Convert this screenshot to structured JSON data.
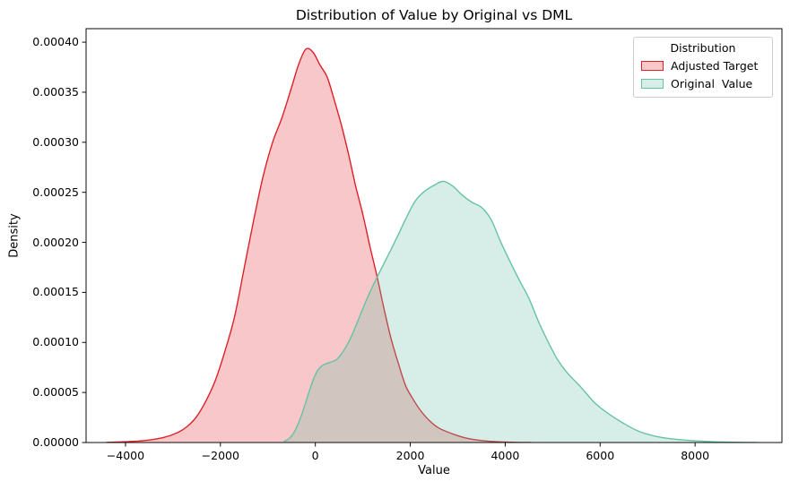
{
  "chart_data": {
    "type": "area",
    "subtype": "kde-density",
    "title": "Distribution of Value by Original vs DML",
    "xlabel": "Value",
    "ylabel": "Density",
    "xlim": [
      -4830,
      9830
    ],
    "ylim": [
      0,
      0.0004135
    ],
    "grid": false,
    "xtick_values": [
      -4000,
      -2000,
      0,
      2000,
      4000,
      6000,
      8000
    ],
    "xtick_labels": [
      "−4000",
      "−2000",
      "0",
      "2000",
      "4000",
      "6000",
      "8000"
    ],
    "ytick_values": [
      0.0,
      5e-05,
      0.0001,
      0.00015,
      0.0002,
      0.00025,
      0.0003,
      0.00035,
      0.0004
    ],
    "ytick_labels": [
      "0.00000",
      "0.00005",
      "0.00010",
      "0.00015",
      "0.00020",
      "0.00025",
      "0.00030",
      "0.00035",
      "0.00040"
    ],
    "legend": {
      "title": "Distribution",
      "position": "upper right",
      "entries": [
        {
          "label": "Adjusted Target"
        },
        {
          "label": "Original  Value"
        }
      ]
    },
    "frame_color": "#0a0a0a",
    "series": [
      {
        "name": "Adjusted Target",
        "line_color": "#e02029",
        "fill_color": "rgba(224,32,41,0.25)",
        "peak": {
          "x": -200,
          "y": 0.000393
        },
        "points": [
          [
            -4400,
            2e-07
          ],
          [
            -4000,
            8e-07
          ],
          [
            -3600,
            2e-06
          ],
          [
            -3200,
            5e-06
          ],
          [
            -2900,
            1e-05
          ],
          [
            -2700,
            1.6e-05
          ],
          [
            -2500,
            2.6e-05
          ],
          [
            -2300,
            4.2e-05
          ],
          [
            -2100,
            6.3e-05
          ],
          [
            -1900,
            9.2e-05
          ],
          [
            -1700,
            0.000126
          ],
          [
            -1500,
            0.000174
          ],
          [
            -1300,
            0.000222
          ],
          [
            -1100,
            0.000266
          ],
          [
            -900,
            0.0003
          ],
          [
            -700,
            0.000325
          ],
          [
            -500,
            0.000355
          ],
          [
            -350,
            0.000378
          ],
          [
            -200,
            0.000393
          ],
          [
            -50,
            0.00039
          ],
          [
            100,
            0.000377
          ],
          [
            250,
            0.000365
          ],
          [
            400,
            0.000342
          ],
          [
            550,
            0.000317
          ],
          [
            700,
            0.000288
          ],
          [
            850,
            0.000256
          ],
          [
            1000,
            0.000228
          ],
          [
            1150,
            0.000196
          ],
          [
            1300,
            0.000166
          ],
          [
            1450,
            0.000133
          ],
          [
            1600,
            0.000103
          ],
          [
            1750,
            7.9e-05
          ],
          [
            1900,
            5.7e-05
          ],
          [
            2050,
            4.4e-05
          ],
          [
            2200,
            3.3e-05
          ],
          [
            2400,
            2.2e-05
          ],
          [
            2600,
            1.45e-05
          ],
          [
            2900,
            8.5e-06
          ],
          [
            3200,
            4.2e-06
          ],
          [
            3600,
            1.5e-06
          ],
          [
            4000,
            5e-07
          ],
          [
            4300,
            1e-07
          ],
          [
            4550,
            0
          ]
        ]
      },
      {
        "name": "Original  Value",
        "line_color": "#66c2a5",
        "fill_color": "rgba(102,194,165,0.27)",
        "peak": {
          "x": 2700,
          "y": 0.000261
        },
        "points": [
          [
            -660,
            1e-06
          ],
          [
            -550,
            4e-06
          ],
          [
            -450,
            1e-05
          ],
          [
            -350,
            2e-05
          ],
          [
            -250,
            3.3e-05
          ],
          [
            -150,
            4.8e-05
          ],
          [
            -50,
            6.2e-05
          ],
          [
            50,
            7.2e-05
          ],
          [
            150,
            7.7e-05
          ],
          [
            300,
            8e-05
          ],
          [
            450,
            8.3e-05
          ],
          [
            600,
            9.2e-05
          ],
          [
            750,
            0.000105
          ],
          [
            900,
            0.000122
          ],
          [
            1100,
            0.000145
          ],
          [
            1300,
            0.000165
          ],
          [
            1500,
            0.000184
          ],
          [
            1700,
            0.000203
          ],
          [
            1900,
            0.000223
          ],
          [
            2100,
            0.000241
          ],
          [
            2300,
            0.000251
          ],
          [
            2500,
            0.000257
          ],
          [
            2700,
            0.000261
          ],
          [
            2900,
            0.000256
          ],
          [
            3100,
            0.000247
          ],
          [
            3300,
            0.00024
          ],
          [
            3500,
            0.000235
          ],
          [
            3700,
            0.000223
          ],
          [
            3900,
            0.000201
          ],
          [
            4100,
            0.000181
          ],
          [
            4300,
            0.000162
          ],
          [
            4500,
            0.000144
          ],
          [
            4700,
            0.000121
          ],
          [
            4900,
            0.000101
          ],
          [
            5100,
            8.3e-05
          ],
          [
            5300,
            7e-05
          ],
          [
            5600,
            5.5e-05
          ],
          [
            5900,
            3.9e-05
          ],
          [
            6200,
            2.8e-05
          ],
          [
            6500,
            1.9e-05
          ],
          [
            6800,
            1.15e-05
          ],
          [
            7100,
            7e-06
          ],
          [
            7400,
            4.3e-06
          ],
          [
            7800,
            2.4e-06
          ],
          [
            8200,
            1.2e-06
          ],
          [
            8600,
            5e-07
          ],
          [
            9100,
            1e-07
          ],
          [
            9300,
            0
          ]
        ]
      }
    ]
  }
}
